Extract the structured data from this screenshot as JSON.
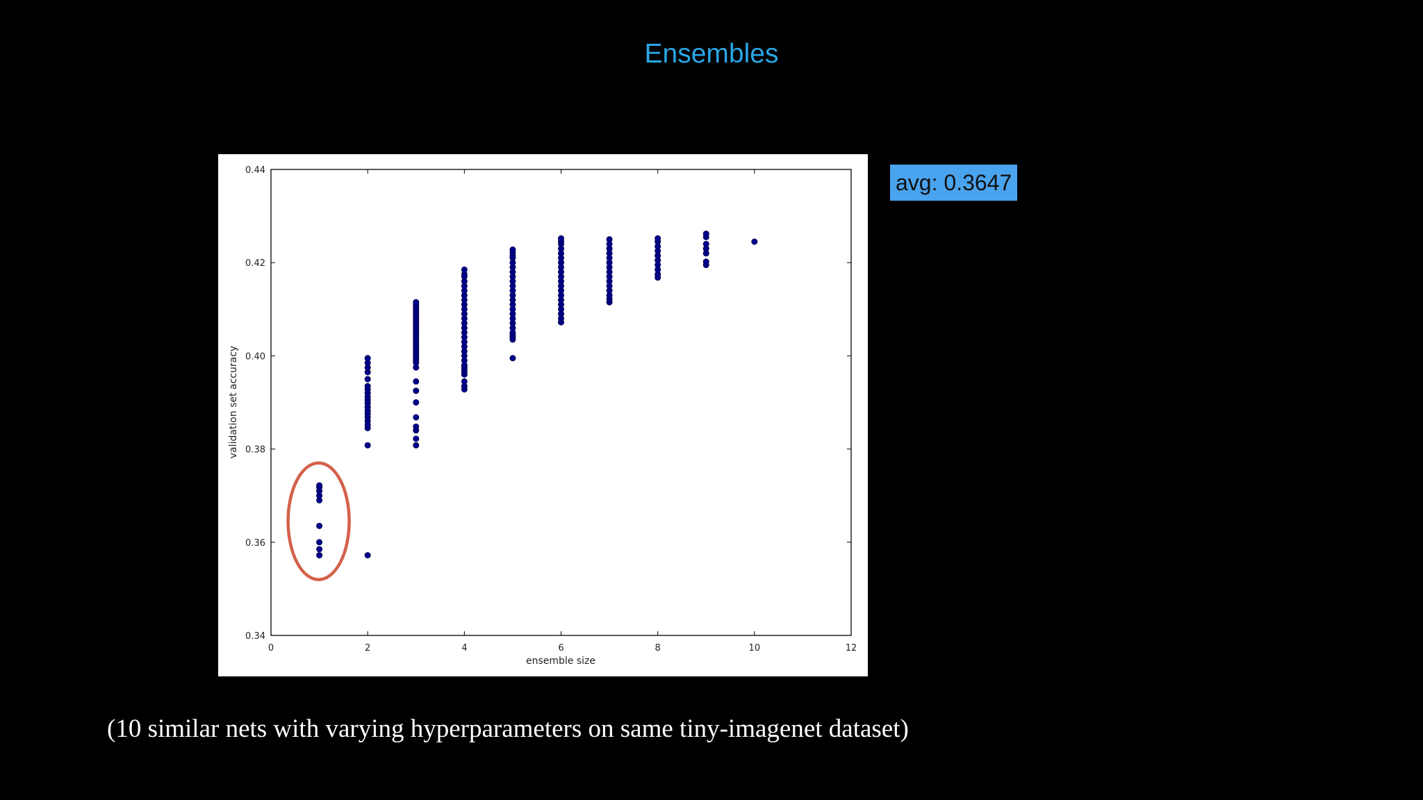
{
  "slide": {
    "title": "Ensembles",
    "avg_badge": "avg: 0.3647",
    "caption": "(10 similar nets with varying hyperparameters on same tiny-imagenet dataset)"
  },
  "colors": {
    "background": "#000000",
    "title": "#2aa7e6",
    "badge_bg": "#4aa3ee",
    "marker": "#00008b",
    "highlight_ring": "#d4614a"
  },
  "chart_data": {
    "type": "scatter",
    "title": "",
    "xlabel": "ensemble size",
    "ylabel": "validation set accuracy",
    "xlim": [
      0,
      12
    ],
    "ylim": [
      0.34,
      0.44
    ],
    "xticks": [
      0,
      2,
      4,
      6,
      8,
      10,
      12
    ],
    "yticks": [
      0.34,
      0.36,
      0.38,
      0.4,
      0.42,
      0.44
    ],
    "xtick_labels": [
      "0",
      "2",
      "4",
      "6",
      "8",
      "10",
      "12"
    ],
    "ytick_labels": [
      "0.34",
      "0.36",
      "0.38",
      "0.40",
      "0.42",
      "0.44"
    ],
    "grid": false,
    "highlight": {
      "shape": "ellipse",
      "around_x": 1
    },
    "points": [
      {
        "x": 1,
        "ys": [
          0.3572,
          0.3585,
          0.36,
          0.3635,
          0.369,
          0.37,
          0.371,
          0.3718,
          0.3722
        ]
      },
      {
        "x": 2,
        "ys": [
          0.3572,
          0.3808,
          0.3845,
          0.3852,
          0.386,
          0.3868,
          0.3875,
          0.3882,
          0.389,
          0.3898,
          0.3905,
          0.3912,
          0.392,
          0.3928,
          0.3935,
          0.395,
          0.3965,
          0.3975,
          0.3985,
          0.3995
        ]
      },
      {
        "x": 3,
        "ys": [
          0.3808,
          0.3822,
          0.384,
          0.3848,
          0.3868,
          0.39,
          0.3925,
          0.3945,
          0.3975,
          0.3985,
          0.399,
          0.3995,
          0.4,
          0.4005,
          0.401,
          0.4015,
          0.402,
          0.4025,
          0.403,
          0.4035,
          0.404,
          0.4045,
          0.405,
          0.4055,
          0.406,
          0.4065,
          0.407,
          0.4075,
          0.408,
          0.4085,
          0.409,
          0.4095,
          0.41,
          0.4105,
          0.411,
          0.4115
        ]
      },
      {
        "x": 4,
        "ys": [
          0.3928,
          0.3935,
          0.3945,
          0.396,
          0.3965,
          0.397,
          0.3975,
          0.398,
          0.399,
          0.4,
          0.401,
          0.402,
          0.403,
          0.404,
          0.405,
          0.406,
          0.407,
          0.408,
          0.409,
          0.41,
          0.411,
          0.412,
          0.413,
          0.414,
          0.415,
          0.416,
          0.417,
          0.4175,
          0.4185
        ]
      },
      {
        "x": 5,
        "ys": [
          0.3995,
          0.4035,
          0.404,
          0.4045,
          0.405,
          0.406,
          0.407,
          0.408,
          0.409,
          0.41,
          0.411,
          0.412,
          0.413,
          0.414,
          0.415,
          0.416,
          0.417,
          0.418,
          0.419,
          0.42,
          0.421,
          0.4215,
          0.4222,
          0.4228
        ]
      },
      {
        "x": 6,
        "ys": [
          0.4072,
          0.408,
          0.409,
          0.41,
          0.411,
          0.412,
          0.413,
          0.414,
          0.415,
          0.416,
          0.417,
          0.418,
          0.419,
          0.42,
          0.421,
          0.422,
          0.423,
          0.424,
          0.4245,
          0.4252
        ]
      },
      {
        "x": 7,
        "ys": [
          0.4115,
          0.4122,
          0.413,
          0.414,
          0.415,
          0.416,
          0.417,
          0.418,
          0.419,
          0.42,
          0.421,
          0.422,
          0.423,
          0.424,
          0.425
        ]
      },
      {
        "x": 8,
        "ys": [
          0.4168,
          0.4175,
          0.4185,
          0.4195,
          0.4205,
          0.4215,
          0.4225,
          0.4235,
          0.4245,
          0.4252
        ]
      },
      {
        "x": 9,
        "ys": [
          0.4195,
          0.4202,
          0.422,
          0.423,
          0.424,
          0.4255,
          0.4262
        ]
      },
      {
        "x": 10,
        "ys": [
          0.4245
        ]
      }
    ]
  }
}
